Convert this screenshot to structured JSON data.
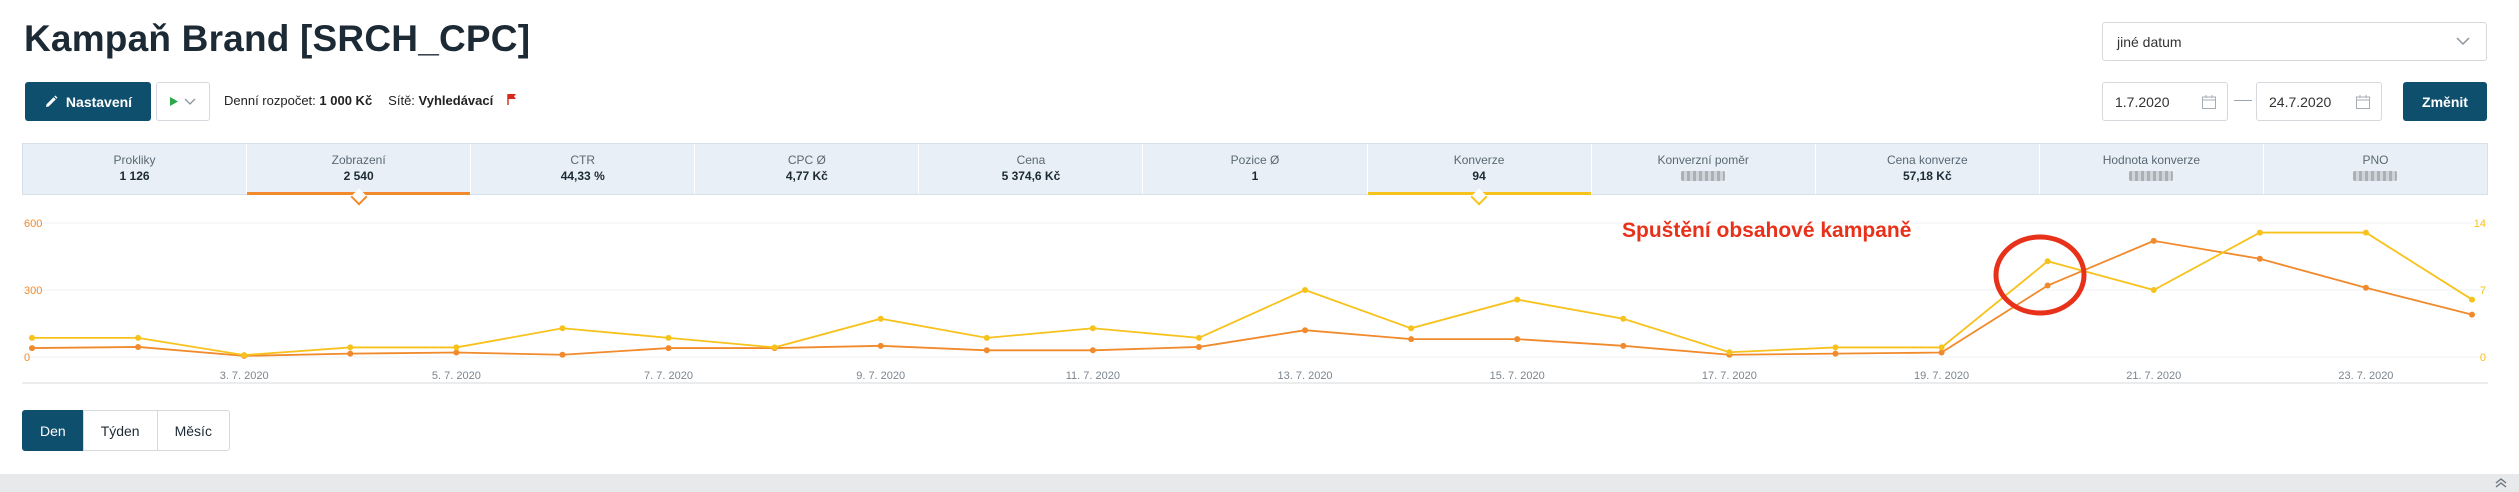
{
  "page_title": "Kampaň Brand [SRCH_CPC]",
  "date_select": {
    "value": "jiné datum"
  },
  "toolbar": {
    "settings_label": "Nastavení",
    "budget_label": "Denní rozpočet:",
    "budget_value": "1 000 Kč",
    "networks_label": "Sítě:",
    "networks_value": "Vyhledávací"
  },
  "date_range": {
    "from": "1.7.2020",
    "to": "24.7.2020",
    "change_label": "Změnit"
  },
  "metrics": [
    {
      "label": "Prokliky",
      "value": "1 126",
      "hidden": false
    },
    {
      "label": "Zobrazení",
      "value": "2 540",
      "hidden": false,
      "selected_color": "#f08a2c"
    },
    {
      "label": "CTR",
      "value": "44,33 %",
      "hidden": false
    },
    {
      "label": "CPC Ø",
      "value": "4,77 Kč",
      "hidden": false
    },
    {
      "label": "Cena",
      "value": "5 374,6 Kč",
      "hidden": false
    },
    {
      "label": "Pozice Ø",
      "value": "1",
      "hidden": false
    },
    {
      "label": "Konverze",
      "value": "94",
      "hidden": false,
      "selected_color": "#f7c21c"
    },
    {
      "label": "Konverzní poměr",
      "value": "",
      "hidden": true
    },
    {
      "label": "Cena konverze",
      "value": "57,18 Kč",
      "hidden": false
    },
    {
      "label": "Hodnota konverze",
      "value": "",
      "hidden": true
    },
    {
      "label": "PNO",
      "value": "",
      "hidden": true
    }
  ],
  "chart_data": {
    "type": "line",
    "x": [
      "1. 7. 2020",
      "2. 7. 2020",
      "3. 7. 2020",
      "4. 7. 2020",
      "5. 7. 2020",
      "6. 7. 2020",
      "7. 7. 2020",
      "8. 7. 2020",
      "9. 7. 2020",
      "10. 7. 2020",
      "11. 7. 2020",
      "12. 7. 2020",
      "13. 7. 2020",
      "14. 7. 2020",
      "15. 7. 2020",
      "16. 7. 2020",
      "17. 7. 2020",
      "18. 7. 2020",
      "19. 7. 2020",
      "20. 7. 2020",
      "21. 7. 2020",
      "22. 7. 2020",
      "23. 7. 2020",
      "24. 7. 2020"
    ],
    "x_tick_labels": [
      "3. 7. 2020",
      "5. 7. 2020",
      "7. 7. 2020",
      "9. 7. 2020",
      "11. 7. 2020",
      "13. 7. 2020",
      "15. 7. 2020",
      "17. 7. 2020",
      "19. 7. 2020",
      "21. 7. 2020",
      "23. 7. 2020"
    ],
    "left_axis": {
      "ticks": [
        "0",
        "300",
        "600"
      ],
      "ylim": [
        0,
        600
      ],
      "color": "#f08a2c"
    },
    "right_axis": {
      "ticks": [
        "0",
        "7",
        "14"
      ],
      "ylim": [
        0,
        14
      ],
      "color": "#f7c21c"
    },
    "series": [
      {
        "name": "Zobrazení",
        "axis": "left",
        "color": "#f08a2c",
        "values": [
          40,
          45,
          5,
          15,
          20,
          10,
          40,
          40,
          50,
          30,
          30,
          45,
          120,
          80,
          80,
          50,
          10,
          15,
          20,
          320,
          520,
          440,
          310,
          190
        ]
      },
      {
        "name": "Konverze",
        "axis": "right",
        "color": "#f7c21c",
        "values": [
          2,
          2,
          0.2,
          1,
          1,
          3,
          2,
          1,
          4,
          2,
          3,
          2,
          7,
          3,
          6,
          4,
          0.5,
          1,
          1,
          10,
          7,
          13,
          13,
          6
        ]
      }
    ],
    "annotation": {
      "text": "Spuštění obsahové kampaně",
      "color": "#e8311a"
    },
    "grid": true
  },
  "periods": [
    {
      "label": "Den",
      "active": true
    },
    {
      "label": "Týden",
      "active": false
    },
    {
      "label": "Měsíc",
      "active": false
    }
  ]
}
